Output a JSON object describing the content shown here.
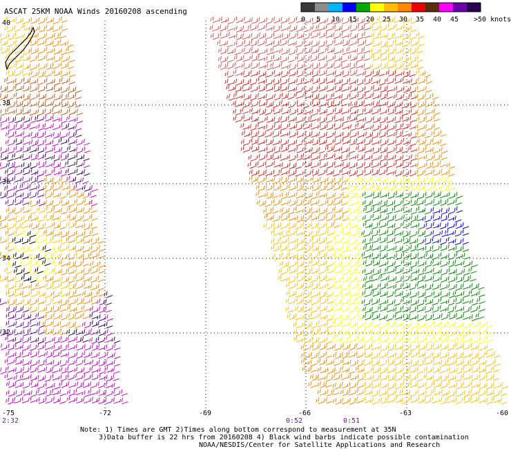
{
  "title": "ASCAT 25KM NOAA Winds 20160208 ascending",
  "legend": {
    "labels": [
      "0",
      "5",
      "10",
      "15",
      "20",
      "25",
      "30",
      "35",
      "40",
      "45",
      ">50 knots"
    ],
    "colors": [
      "#3a3a3a",
      "#8c8c8c",
      "#00b4ff",
      "#0000ff",
      "#00aa00",
      "#ffff00",
      "#ffbf00",
      "#ff8800",
      "#ee0000",
      "#5a2e0a",
      "#ff00ff",
      "#6a00b0",
      "#2a0055"
    ]
  },
  "lat_labels": [
    "40",
    "38",
    "36",
    "34",
    "32"
  ],
  "lon_labels": [
    "-75",
    "-72",
    "-69",
    "-66",
    "-63",
    "-60"
  ],
  "pass_times": [
    "2:32",
    "0:52",
    "0:51"
  ],
  "notes": [
    "Note: 1) Times are GMT 2)Times along bottom correspond to measurement at 35N",
    "3)Data buffer is 22 hrs from 20160208 4) Black wind barbs indicate possible contamination",
    "NOAA/NESDIS/Center for Satellite Applications and Research"
  ]
}
